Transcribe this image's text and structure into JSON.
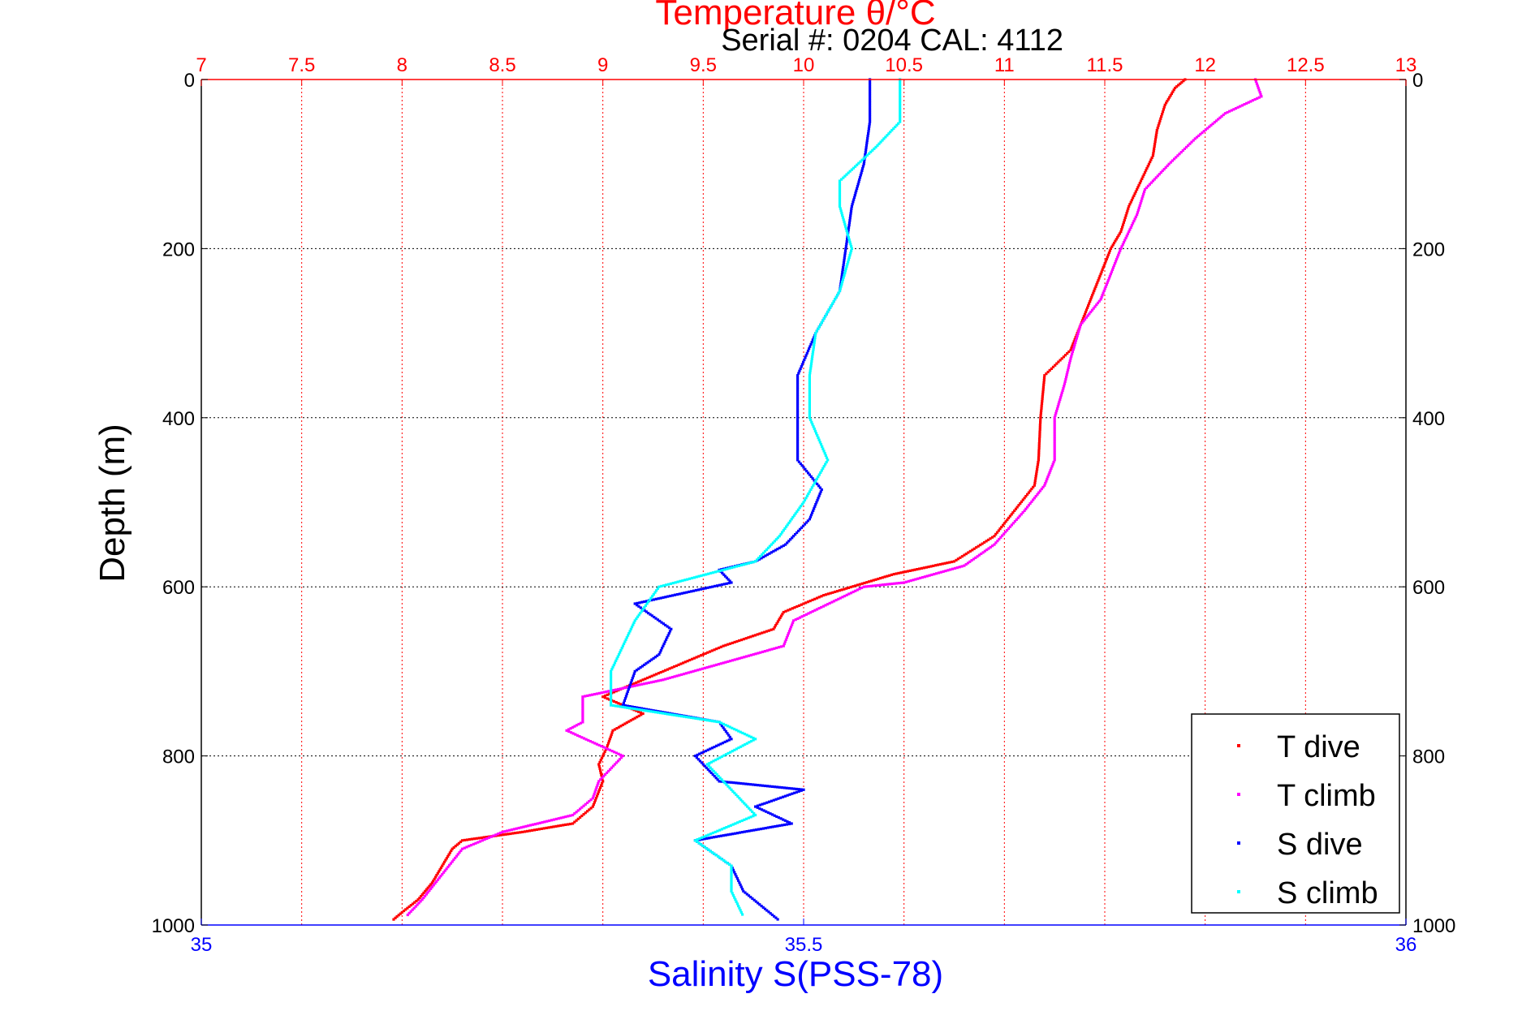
{
  "chart_data": {
    "type": "scatter",
    "title": "Temperature θ/°C",
    "subtitle": "Serial #: 0204  CAL: 4112",
    "ylabel": "Depth (m)",
    "xlabel_bottom": "Salinity S(PSS-78)",
    "y_axis": {
      "range": [
        0,
        1000
      ],
      "reversed": true,
      "ticks": [
        0,
        200,
        400,
        600,
        800,
        1000
      ]
    },
    "x_top": {
      "label": "Temperature θ/°C",
      "range": [
        7,
        13
      ],
      "ticks": [
        7,
        7.5,
        8,
        8.5,
        9,
        9.5,
        10,
        10.5,
        11,
        11.5,
        12,
        12.5,
        13
      ],
      "tick_labels": [
        "7",
        "7.5",
        "8",
        "8.5",
        "9",
        "9.5",
        "10",
        "10.5",
        "11",
        "11.5",
        "12",
        "12.5",
        "13"
      ],
      "color": "#ff0000"
    },
    "x_bottom": {
      "label": "Salinity S(PSS-78)",
      "range": [
        35,
        36
      ],
      "ticks": [
        35,
        35.5,
        36
      ],
      "tick_labels": [
        "35",
        "35.5",
        "36"
      ],
      "color": "#0000ff"
    },
    "grid": true,
    "legend_position": "bottom-right",
    "series": [
      {
        "name": "T dive",
        "axis": "temperature",
        "color": "#ff0000",
        "points": [
          [
            11.9,
            0
          ],
          [
            11.85,
            10
          ],
          [
            11.8,
            30
          ],
          [
            11.76,
            60
          ],
          [
            11.74,
            90
          ],
          [
            11.68,
            120
          ],
          [
            11.62,
            150
          ],
          [
            11.58,
            180
          ],
          [
            11.53,
            200
          ],
          [
            11.48,
            230
          ],
          [
            11.43,
            260
          ],
          [
            11.38,
            290
          ],
          [
            11.33,
            320
          ],
          [
            11.2,
            350
          ],
          [
            11.18,
            400
          ],
          [
            11.17,
            450
          ],
          [
            11.15,
            480
          ],
          [
            11.05,
            510
          ],
          [
            10.95,
            540
          ],
          [
            10.75,
            570
          ],
          [
            10.45,
            585
          ],
          [
            10.1,
            610
          ],
          [
            9.9,
            630
          ],
          [
            9.85,
            650
          ],
          [
            9.6,
            670
          ],
          [
            9.3,
            700
          ],
          [
            9.0,
            730
          ],
          [
            9.2,
            750
          ],
          [
            9.05,
            770
          ],
          [
            9.02,
            790
          ],
          [
            8.98,
            810
          ],
          [
            9.0,
            830
          ],
          [
            8.95,
            860
          ],
          [
            8.85,
            880
          ],
          [
            8.6,
            890
          ],
          [
            8.3,
            900
          ],
          [
            8.25,
            910
          ],
          [
            8.2,
            930
          ],
          [
            8.15,
            950
          ],
          [
            8.08,
            970
          ],
          [
            8.0,
            985
          ],
          [
            7.95,
            995
          ]
        ]
      },
      {
        "name": "T climb",
        "axis": "temperature",
        "color": "#ff00ff",
        "points": [
          [
            12.25,
            0
          ],
          [
            12.28,
            20
          ],
          [
            12.1,
            40
          ],
          [
            11.95,
            70
          ],
          [
            11.82,
            100
          ],
          [
            11.7,
            130
          ],
          [
            11.66,
            160
          ],
          [
            11.58,
            200
          ],
          [
            11.53,
            230
          ],
          [
            11.48,
            260
          ],
          [
            11.38,
            290
          ],
          [
            11.33,
            330
          ],
          [
            11.3,
            360
          ],
          [
            11.25,
            400
          ],
          [
            11.25,
            450
          ],
          [
            11.2,
            480
          ],
          [
            11.1,
            510
          ],
          [
            10.95,
            550
          ],
          [
            10.8,
            575
          ],
          [
            10.5,
            595
          ],
          [
            10.3,
            600
          ],
          [
            9.95,
            640
          ],
          [
            9.9,
            670
          ],
          [
            9.6,
            690
          ],
          [
            9.3,
            710
          ],
          [
            8.9,
            730
          ],
          [
            8.9,
            760
          ],
          [
            8.82,
            770
          ],
          [
            9.1,
            800
          ],
          [
            8.98,
            830
          ],
          [
            8.95,
            850
          ],
          [
            8.85,
            870
          ],
          [
            8.5,
            890
          ],
          [
            8.3,
            910
          ],
          [
            8.2,
            940
          ],
          [
            8.1,
            970
          ],
          [
            8.02,
            990
          ]
        ]
      },
      {
        "name": "S dive",
        "axis": "salinity",
        "color": "#0000ff",
        "points": [
          [
            35.555,
            0
          ],
          [
            35.555,
            50
          ],
          [
            35.55,
            100
          ],
          [
            35.54,
            150
          ],
          [
            35.535,
            200
          ],
          [
            35.53,
            250
          ],
          [
            35.51,
            300
          ],
          [
            35.495,
            350
          ],
          [
            35.495,
            400
          ],
          [
            35.495,
            450
          ],
          [
            35.515,
            485
          ],
          [
            35.505,
            520
          ],
          [
            35.485,
            550
          ],
          [
            35.46,
            570
          ],
          [
            35.43,
            580
          ],
          [
            35.44,
            595
          ],
          [
            35.36,
            620
          ],
          [
            35.39,
            650
          ],
          [
            35.38,
            680
          ],
          [
            35.36,
            700
          ],
          [
            35.35,
            740
          ],
          [
            35.43,
            760
          ],
          [
            35.44,
            780
          ],
          [
            35.41,
            800
          ],
          [
            35.43,
            830
          ],
          [
            35.5,
            840
          ],
          [
            35.46,
            860
          ],
          [
            35.49,
            880
          ],
          [
            35.41,
            900
          ],
          [
            35.44,
            930
          ],
          [
            35.45,
            960
          ],
          [
            35.48,
            995
          ]
        ]
      },
      {
        "name": "S climb",
        "axis": "salinity",
        "color": "#00ffff",
        "points": [
          [
            35.58,
            0
          ],
          [
            35.58,
            50
          ],
          [
            35.56,
            80
          ],
          [
            35.53,
            120
          ],
          [
            35.53,
            150
          ],
          [
            35.54,
            200
          ],
          [
            35.53,
            250
          ],
          [
            35.51,
            300
          ],
          [
            35.505,
            350
          ],
          [
            35.505,
            400
          ],
          [
            35.52,
            450
          ],
          [
            35.5,
            500
          ],
          [
            35.48,
            540
          ],
          [
            35.46,
            570
          ],
          [
            35.38,
            600
          ],
          [
            35.36,
            640
          ],
          [
            35.35,
            670
          ],
          [
            35.34,
            700
          ],
          [
            35.34,
            740
          ],
          [
            35.43,
            760
          ],
          [
            35.46,
            780
          ],
          [
            35.42,
            810
          ],
          [
            35.44,
            840
          ],
          [
            35.46,
            870
          ],
          [
            35.41,
            900
          ],
          [
            35.44,
            930
          ],
          [
            35.44,
            960
          ],
          [
            35.45,
            990
          ]
        ]
      }
    ]
  }
}
